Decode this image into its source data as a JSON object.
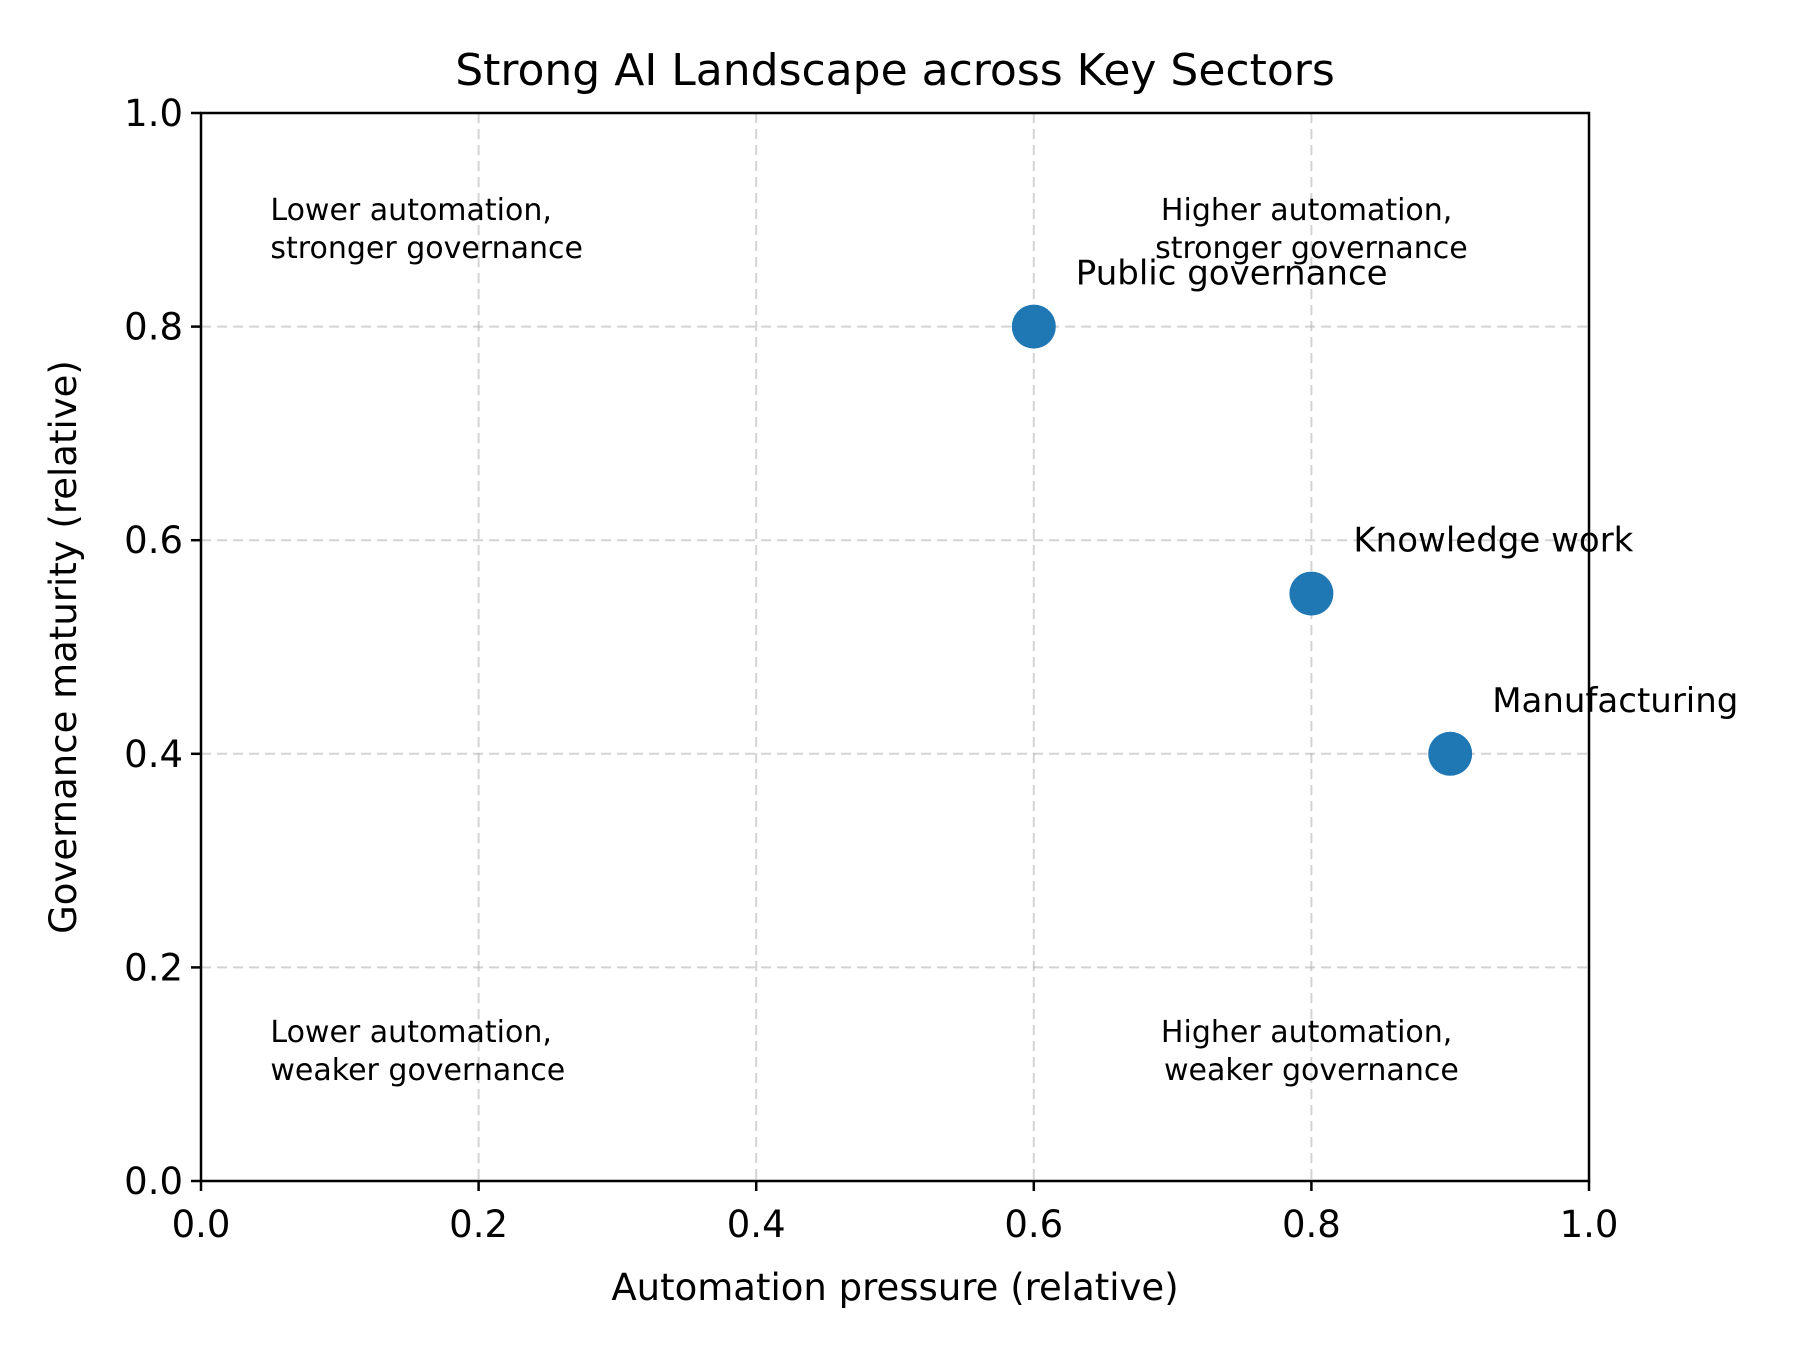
{
  "chart_data": {
    "type": "scatter",
    "title": "Strong AI Landscape across Key Sectors",
    "xlabel": "Automation pressure (relative)",
    "ylabel": "Governance maturity (relative)",
    "xlim": [
      0.0,
      1.0
    ],
    "ylim": [
      0.0,
      1.0
    ],
    "grid": true,
    "xticks": [
      "0.0",
      "0.2",
      "0.4",
      "0.6",
      "0.8",
      "1.0"
    ],
    "yticks": [
      "0.0",
      "0.2",
      "0.4",
      "0.6",
      "0.8",
      "1.0"
    ],
    "marker_color": "#1f77b4",
    "points": [
      {
        "label": "Public governance",
        "x": 0.6,
        "y": 0.8
      },
      {
        "label": "Knowledge work",
        "x": 0.8,
        "y": 0.55
      },
      {
        "label": "Manufacturing",
        "x": 0.9,
        "y": 0.4
      }
    ],
    "quadrant_labels": {
      "top_left": [
        "Lower automation,",
        "stronger governance"
      ],
      "top_right": [
        "Higher automation,",
        "stronger governance"
      ],
      "bottom_left": [
        "Lower automation,",
        "weaker governance"
      ],
      "bottom_right": [
        "Higher automation,",
        "weaker governance"
      ]
    }
  }
}
